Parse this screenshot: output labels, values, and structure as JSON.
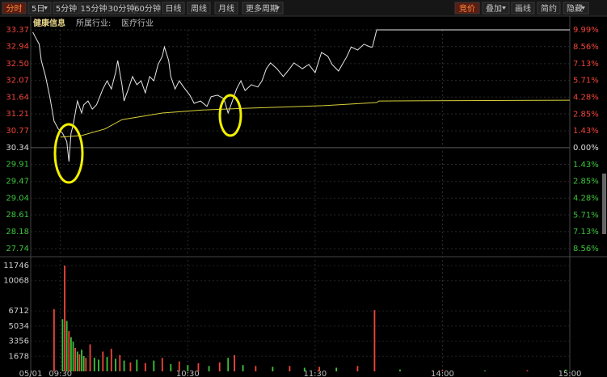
{
  "toolbar": {
    "periods": [
      "分时",
      "5日",
      "5分钟",
      "15分钟",
      "30分钟",
      "60分钟",
      "日线",
      "周线",
      "月线",
      "更多周期"
    ],
    "tools": [
      "竞价",
      "叠加",
      "画线",
      "简约",
      "隐藏"
    ]
  },
  "header": {
    "name": "健康信息",
    "industry_label": "所属行业:",
    "industry": "医疗行业"
  },
  "chart_data": [
    {
      "type": "line",
      "up_color": "#f0453a",
      "down_color": "#3cc43c",
      "grid": true,
      "xlim": [
        -14,
        240
      ],
      "ylim": [
        27.74,
        33.37
      ],
      "yticks": [
        33.37,
        32.94,
        {
          "value": 32.5,
          "label": "32.50"
        },
        32.07,
        31.64,
        31.21,
        30.77,
        30.34,
        29.91,
        29.47,
        29.04,
        28.61,
        28.18,
        27.74
      ],
      "y2lim": [
        -8.56,
        9.99
      ],
      "y2ticks": [
        {
          "value": 9.99,
          "label": "9.99%"
        },
        {
          "value": 8.56,
          "label": "8.56%"
        },
        {
          "value": 7.13,
          "label": "7.13%"
        },
        {
          "value": 5.71,
          "label": "5.71%"
        },
        {
          "value": 4.28,
          "label": "4.28%"
        },
        {
          "value": 2.85,
          "label": "2.85%"
        },
        {
          "value": 1.43,
          "label": "1.43%"
        },
        {
          "value": 0,
          "label": "0.00%"
        },
        {
          "value": -1.43,
          "label": "1.43%"
        },
        {
          "value": -2.85,
          "label": "2.85%"
        },
        {
          "value": -4.28,
          "label": "4.28%"
        },
        {
          "value": -5.71,
          "label": "5.71%"
        },
        {
          "value": -7.13,
          "label": "7.13%"
        },
        {
          "value": -8.56,
          "label": "8.56%"
        }
      ],
      "series": [
        {
          "color": "#e8e8e8",
          "x": [
            -13,
            -12,
            -10,
            -9,
            -7,
            -5,
            -3,
            -1,
            1,
            3,
            4,
            5,
            6,
            8,
            10,
            11,
            13,
            15,
            17,
            20,
            22,
            24,
            26,
            27,
            29,
            30,
            32,
            34,
            36,
            38,
            40,
            42,
            44,
            46,
            48,
            49,
            51,
            52,
            54,
            56,
            58,
            61,
            63,
            66,
            69,
            71,
            74,
            77,
            79,
            81,
            83,
            85,
            87,
            90,
            93,
            95,
            97,
            99,
            102,
            105,
            108,
            110,
            114,
            117,
            120,
            123,
            126,
            128,
            131,
            135,
            137,
            140,
            143,
            146,
            147,
            149,
            240
          ],
          "values": [
            33.31,
            33.2,
            33.0,
            32.58,
            32.17,
            31.65,
            31.02,
            30.82,
            30.71,
            30.5,
            29.98,
            30.71,
            30.92,
            31.54,
            31.23,
            31.44,
            31.54,
            31.33,
            31.44,
            31.85,
            32.06,
            31.85,
            32.27,
            32.58,
            31.96,
            31.54,
            31.85,
            32.17,
            31.96,
            32.06,
            31.75,
            32.17,
            32.06,
            32.48,
            32.69,
            32.93,
            32.58,
            32.17,
            31.85,
            32.06,
            31.9,
            31.69,
            31.48,
            31.54,
            31.4,
            31.65,
            31.69,
            31.6,
            31.23,
            31.54,
            31.85,
            32.06,
            31.81,
            31.96,
            31.9,
            32.06,
            32.37,
            32.52,
            32.37,
            32.17,
            32.37,
            32.52,
            32.37,
            32.48,
            32.27,
            32.79,
            32.69,
            32.48,
            32.31,
            32.69,
            32.93,
            32.85,
            33.0,
            32.93,
            32.93,
            33.37,
            33.37
          ]
        },
        {
          "color": "#d8d03a",
          "x": [
            0,
            10,
            21,
            29,
            48,
            67,
            86,
            124,
            149,
            150,
            240
          ],
          "values": [
            30.61,
            30.65,
            30.82,
            31.06,
            31.23,
            31.31,
            31.35,
            31.42,
            31.5,
            31.54,
            31.56
          ]
        }
      ]
    },
    {
      "type": "bar",
      "xlim": [
        -14,
        240
      ],
      "xticks": [
        {
          "value": -14,
          "label": "05/01"
        },
        {
          "value": 0,
          "label": "09:30"
        },
        {
          "value": 60,
          "label": "10:30"
        },
        {
          "value": 120,
          "label": "11:30"
        },
        {
          "value": 180,
          "label": "14:00"
        },
        {
          "value": 240,
          "label": "15:00"
        }
      ],
      "ylim": [
        0,
        11746
      ],
      "yticks": [
        1678,
        3356,
        5034,
        6712,
        10068,
        11746
      ],
      "x": [
        -3,
        1,
        2,
        3,
        4,
        5,
        6,
        7,
        8,
        9,
        10,
        11,
        12,
        14,
        16,
        18,
        20,
        22,
        24,
        26,
        28,
        30,
        33,
        36,
        40,
        44,
        48,
        52,
        56,
        60,
        65,
        70,
        75,
        79,
        82,
        86,
        92,
        100,
        108,
        115,
        122,
        130,
        140,
        148,
        160,
        180,
        200,
        220,
        238
      ],
      "values": [
        6900,
        5800,
        11746,
        5600,
        4500,
        3800,
        3300,
        2600,
        2200,
        1900,
        2400,
        1700,
        1500,
        3000,
        1500,
        1300,
        2200,
        1600,
        2500,
        1400,
        1800,
        1200,
        1000,
        1300,
        900,
        1200,
        1500,
        800,
        1100,
        700,
        900,
        600,
        1000,
        1500,
        1800,
        700,
        600,
        500,
        600,
        400,
        500,
        400,
        600,
        6800,
        200,
        150,
        100,
        120,
        200
      ],
      "colors": [
        "#f0453a",
        "#3cc43c",
        "#f0453a",
        "#3cc43c",
        "#f0453a",
        "#3cc43c",
        "#3cc43c",
        "#f0453a",
        "#3cc43c",
        "#f0453a",
        "#3cc43c",
        "#3cc43c",
        "#f0453a",
        "#f0453a",
        "#3cc43c",
        "#3cc43c",
        "#f0453a",
        "#3cc43c",
        "#f0453a",
        "#3cc43c",
        "#f0453a",
        "#3cc43c",
        "#f0453a",
        "#3cc43c",
        "#f0453a",
        "#3cc43c",
        "#f0453a",
        "#3cc43c",
        "#f0453a",
        "#3cc43c",
        "#f0453a",
        "#3cc43c",
        "#f0453a",
        "#3cc43c",
        "#f0453a",
        "#3cc43c",
        "#f0453a",
        "#3cc43c",
        "#f0453a",
        "#3cc43c",
        "#f0453a",
        "#3cc43c",
        "#f0453a",
        "#f0453a",
        "#3cc43c",
        "#f0453a",
        "#3cc43c",
        "#f0453a",
        "#3cc43c"
      ]
    }
  ]
}
